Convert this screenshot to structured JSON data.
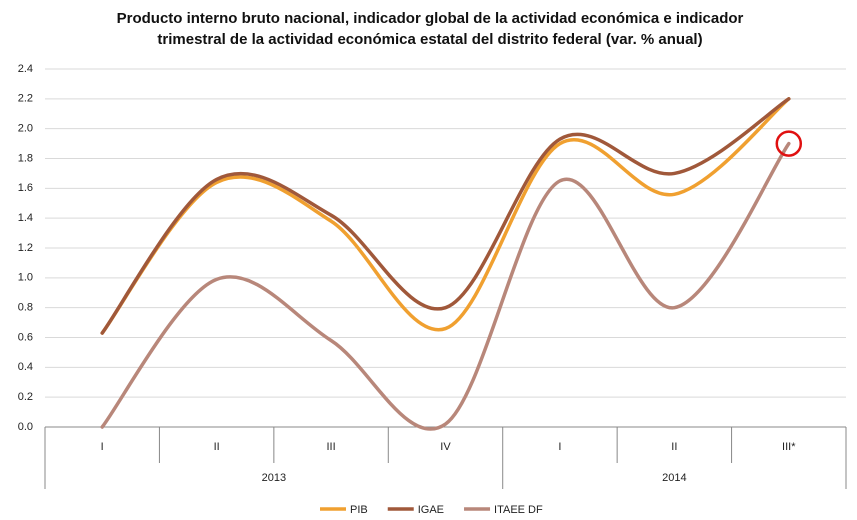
{
  "chart_data": {
    "type": "line",
    "title": "Producto interno bruto nacional, indicador global de la actividad económica e indicador trimestral de la actividad económica estatal del distrito federal (var. % anual)",
    "categories": [
      "I",
      "II",
      "III",
      "IV",
      "I",
      "II",
      "III*"
    ],
    "groups": [
      {
        "label": "2013",
        "span": 4
      },
      {
        "label": "2014",
        "span": 3
      }
    ],
    "series": [
      {
        "name": "PIB",
        "color": "#f0a030",
        "values": [
          0.63,
          1.64,
          1.38,
          0.66,
          1.9,
          1.56,
          2.2
        ]
      },
      {
        "name": "IGAE",
        "color": "#a0583a",
        "values": [
          0.63,
          1.66,
          1.42,
          0.8,
          1.93,
          1.7,
          2.2
        ]
      },
      {
        "name": "ITAEE DF",
        "color": "#b8877a",
        "values": [
          0.0,
          0.99,
          0.58,
          0.02,
          1.65,
          0.8,
          1.9
        ]
      }
    ],
    "ylim": [
      0,
      2.4
    ],
    "yticks": [
      {
        "value": 0,
        "label": "0.0"
      },
      0.2,
      0.4,
      0.6,
      0.8,
      {
        "value": 1,
        "label": "1.0"
      },
      1.2,
      1.4,
      1.6,
      1.8,
      {
        "value": 2,
        "label": "2.0"
      },
      2.2,
      2.4
    ],
    "grid": true,
    "legend": "bottom"
  }
}
